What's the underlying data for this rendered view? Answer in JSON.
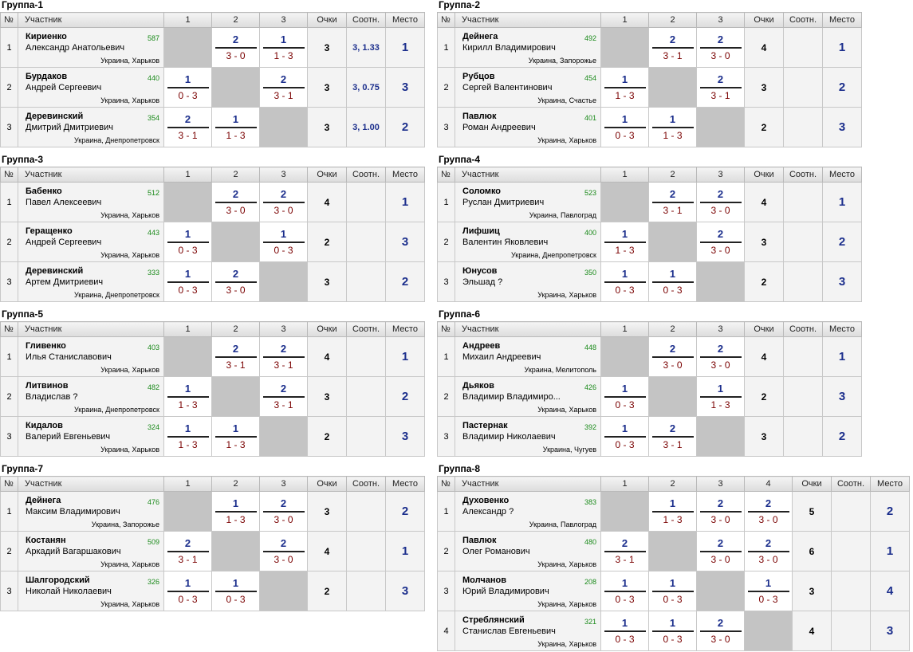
{
  "headers": {
    "num": "№",
    "participant": "Участник",
    "points": "Очки",
    "ratio": "Соотн.",
    "place": "Место"
  },
  "groups": [
    {
      "title": "Группа-1",
      "players": [
        {
          "n": "1",
          "surname": "Кириенко",
          "name": "Александр Анатольевич",
          "rating": "587",
          "city": "Украина, Харьков",
          "cells": [
            null,
            {
              "w": "2",
              "s": "3 - 0"
            },
            {
              "w": "1",
              "s": "1 - 3"
            }
          ],
          "points": "3",
          "ratio": "3, 1.33",
          "place": "1"
        },
        {
          "n": "2",
          "surname": "Бурдаков",
          "name": "Андрей Сергеевич",
          "rating": "440",
          "city": "Украина, Харьков",
          "cells": [
            {
              "w": "1",
              "s": "0 - 3"
            },
            null,
            {
              "w": "2",
              "s": "3 - 1"
            }
          ],
          "points": "3",
          "ratio": "3, 0.75",
          "place": "3"
        },
        {
          "n": "3",
          "surname": "Деревинский",
          "name": "Дмитрий Дмитриевич",
          "rating": "354",
          "city": "Украина, Днепропетровск",
          "cells": [
            {
              "w": "2",
              "s": "3 - 1"
            },
            {
              "w": "1",
              "s": "1 - 3"
            },
            null
          ],
          "points": "3",
          "ratio": "3, 1.00",
          "place": "2"
        }
      ]
    },
    {
      "title": "Группа-2",
      "players": [
        {
          "n": "1",
          "surname": "Дейнега",
          "name": "Кирилл Владимирович",
          "rating": "492",
          "city": "Украина, Запорожье",
          "cells": [
            null,
            {
              "w": "2",
              "s": "3 - 1"
            },
            {
              "w": "2",
              "s": "3 - 0"
            }
          ],
          "points": "4",
          "ratio": "",
          "place": "1"
        },
        {
          "n": "2",
          "surname": "Рубцов",
          "name": "Сергей Валентинович",
          "rating": "454",
          "city": "Украина, Счастье",
          "cells": [
            {
              "w": "1",
              "s": "1 - 3"
            },
            null,
            {
              "w": "2",
              "s": "3 - 1"
            }
          ],
          "points": "3",
          "ratio": "",
          "place": "2"
        },
        {
          "n": "3",
          "surname": "Павлюк",
          "name": "Роман Андреевич",
          "rating": "401",
          "city": "Украина, Харьков",
          "cells": [
            {
              "w": "1",
              "s": "0 - 3"
            },
            {
              "w": "1",
              "s": "1 - 3"
            },
            null
          ],
          "points": "2",
          "ratio": "",
          "place": "3"
        }
      ]
    },
    {
      "title": "Группа-3",
      "players": [
        {
          "n": "1",
          "surname": "Бабенко",
          "name": "Павел Алексеевич",
          "rating": "512",
          "city": "Украина, Харьков",
          "cells": [
            null,
            {
              "w": "2",
              "s": "3 - 0"
            },
            {
              "w": "2",
              "s": "3 - 0"
            }
          ],
          "points": "4",
          "ratio": "",
          "place": "1"
        },
        {
          "n": "2",
          "surname": "Геращенко",
          "name": "Андрей Сергеевич",
          "rating": "443",
          "city": "Украина, Харьков",
          "cells": [
            {
              "w": "1",
              "s": "0 - 3"
            },
            null,
            {
              "w": "1",
              "s": "0 - 3"
            }
          ],
          "points": "2",
          "ratio": "",
          "place": "3"
        },
        {
          "n": "3",
          "surname": "Деревинский",
          "name": "Артем Дмитриевич",
          "rating": "333",
          "city": "Украина, Днепропетровск",
          "cells": [
            {
              "w": "1",
              "s": "0 - 3"
            },
            {
              "w": "2",
              "s": "3 - 0"
            },
            null
          ],
          "points": "3",
          "ratio": "",
          "place": "2"
        }
      ]
    },
    {
      "title": "Группа-4",
      "players": [
        {
          "n": "1",
          "surname": "Соломко",
          "name": "Руслан Дмитриевич",
          "rating": "523",
          "city": "Украина, Павлоград",
          "cells": [
            null,
            {
              "w": "2",
              "s": "3 - 1"
            },
            {
              "w": "2",
              "s": "3 - 0"
            }
          ],
          "points": "4",
          "ratio": "",
          "place": "1"
        },
        {
          "n": "2",
          "surname": "Лифшиц",
          "name": "Валентин Яковлевич",
          "rating": "400",
          "city": "Украина, Днепропетровск",
          "cells": [
            {
              "w": "1",
              "s": "1 - 3"
            },
            null,
            {
              "w": "2",
              "s": "3 - 0"
            }
          ],
          "points": "3",
          "ratio": "",
          "place": "2"
        },
        {
          "n": "3",
          "surname": "Юнусов",
          "name": "Эльшад ?",
          "rating": "350",
          "city": "Украина, Харьков",
          "cells": [
            {
              "w": "1",
              "s": "0 - 3"
            },
            {
              "w": "1",
              "s": "0 - 3"
            },
            null
          ],
          "points": "2",
          "ratio": "",
          "place": "3"
        }
      ]
    },
    {
      "title": "Группа-5",
      "players": [
        {
          "n": "1",
          "surname": "Гливенко",
          "name": "Илья Станиславович",
          "rating": "403",
          "city": "Украина, Харьков",
          "cells": [
            null,
            {
              "w": "2",
              "s": "3 - 1"
            },
            {
              "w": "2",
              "s": "3 - 1"
            }
          ],
          "points": "4",
          "ratio": "",
          "place": "1"
        },
        {
          "n": "2",
          "surname": "Литвинов",
          "name": "Владислав ?",
          "rating": "482",
          "city": "Украина, Днепропетровск",
          "cells": [
            {
              "w": "1",
              "s": "1 - 3"
            },
            null,
            {
              "w": "2",
              "s": "3 - 1"
            }
          ],
          "points": "3",
          "ratio": "",
          "place": "2"
        },
        {
          "n": "3",
          "surname": "Кидалов",
          "name": "Валерий Евгеньевич",
          "rating": "324",
          "city": "Украина, Харьков",
          "cells": [
            {
              "w": "1",
              "s": "1 - 3"
            },
            {
              "w": "1",
              "s": "1 - 3"
            },
            null
          ],
          "points": "2",
          "ratio": "",
          "place": "3"
        }
      ]
    },
    {
      "title": "Группа-6",
      "players": [
        {
          "n": "1",
          "surname": "Андреев",
          "name": "Михаил Андреевич",
          "rating": "448",
          "city": "Украина, Мелитополь",
          "cells": [
            null,
            {
              "w": "2",
              "s": "3 - 0"
            },
            {
              "w": "2",
              "s": "3 - 0"
            }
          ],
          "points": "4",
          "ratio": "",
          "place": "1"
        },
        {
          "n": "2",
          "surname": "Дьяков",
          "name": "Владимир Владимиро...",
          "rating": "426",
          "city": "Украина, Харьков",
          "cells": [
            {
              "w": "1",
              "s": "0 - 3"
            },
            null,
            {
              "w": "1",
              "s": "1 - 3"
            }
          ],
          "points": "2",
          "ratio": "",
          "place": "3"
        },
        {
          "n": "3",
          "surname": "Пастернак",
          "name": "Владимир Николаевич",
          "rating": "392",
          "city": "Украина, Чугуев",
          "cells": [
            {
              "w": "1",
              "s": "0 - 3"
            },
            {
              "w": "2",
              "s": "3 - 1"
            },
            null
          ],
          "points": "3",
          "ratio": "",
          "place": "2"
        }
      ]
    },
    {
      "title": "Группа-7",
      "players": [
        {
          "n": "1",
          "surname": "Дейнега",
          "name": "Максим Владимирович",
          "rating": "476",
          "city": "Украина, Запорожье",
          "cells": [
            null,
            {
              "w": "1",
              "s": "1 - 3"
            },
            {
              "w": "2",
              "s": "3 - 0"
            }
          ],
          "points": "3",
          "ratio": "",
          "place": "2"
        },
        {
          "n": "2",
          "surname": "Костанян",
          "name": "Аркадий Вагаршакович",
          "rating": "509",
          "city": "Украина, Харьков",
          "cells": [
            {
              "w": "2",
              "s": "3 - 1"
            },
            null,
            {
              "w": "2",
              "s": "3 - 0"
            }
          ],
          "points": "4",
          "ratio": "",
          "place": "1"
        },
        {
          "n": "3",
          "surname": "Шалгородский",
          "name": "Николай Николаевич",
          "rating": "326",
          "city": "Украина, Харьков",
          "cells": [
            {
              "w": "1",
              "s": "0 - 3"
            },
            {
              "w": "1",
              "s": "0 - 3"
            },
            null
          ],
          "points": "2",
          "ratio": "",
          "place": "3"
        }
      ]
    },
    {
      "title": "Группа-8",
      "players": [
        {
          "n": "1",
          "surname": "Духовенко",
          "name": "Александр ?",
          "rating": "383",
          "city": "Украина, Павлоград",
          "cells": [
            null,
            {
              "w": "1",
              "s": "1 - 3"
            },
            {
              "w": "2",
              "s": "3 - 0"
            },
            {
              "w": "2",
              "s": "3 - 0"
            }
          ],
          "points": "5",
          "ratio": "",
          "place": "2"
        },
        {
          "n": "2",
          "surname": "Павлюк",
          "name": "Олег Романович",
          "rating": "480",
          "city": "Украина, Харьков",
          "cells": [
            {
              "w": "2",
              "s": "3 - 1"
            },
            null,
            {
              "w": "2",
              "s": "3 - 0"
            },
            {
              "w": "2",
              "s": "3 - 0"
            }
          ],
          "points": "6",
          "ratio": "",
          "place": "1"
        },
        {
          "n": "3",
          "surname": "Молчанов",
          "name": "Юрий Владимирович",
          "rating": "208",
          "city": "Украина, Харьков",
          "cells": [
            {
              "w": "1",
              "s": "0 - 3"
            },
            {
              "w": "1",
              "s": "0 - 3"
            },
            null,
            {
              "w": "1",
              "s": "0 - 3"
            }
          ],
          "points": "3",
          "ratio": "",
          "place": "4"
        },
        {
          "n": "4",
          "surname": "Стреблянский",
          "name": "Станислав Евгеньевич",
          "rating": "321",
          "city": "Украина, Харьков",
          "cells": [
            {
              "w": "1",
              "s": "0 - 3"
            },
            {
              "w": "1",
              "s": "0 - 3"
            },
            {
              "w": "2",
              "s": "3 - 0"
            },
            null
          ],
          "points": "4",
          "ratio": "",
          "place": "3"
        }
      ]
    }
  ]
}
